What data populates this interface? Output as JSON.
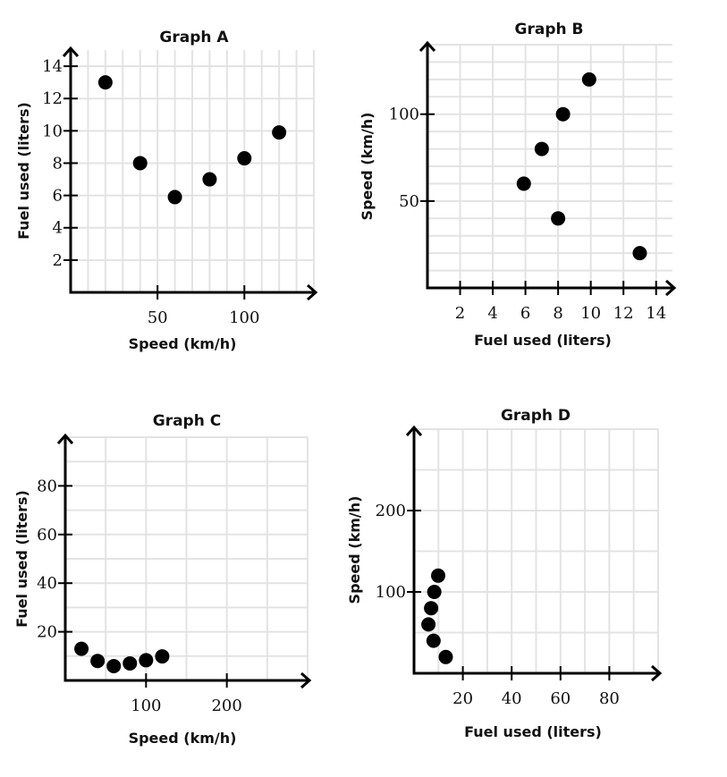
{
  "chart_data": [
    {
      "id": "A",
      "type": "scatter",
      "title": "Graph A",
      "xlabel": "Speed (km/h)",
      "ylabel": "Fuel used (liters)",
      "xlim": [
        0,
        140
      ],
      "ylim": [
        0,
        15
      ],
      "x_grid_step": 10,
      "y_grid_step": 2,
      "x_ticks": [
        50,
        100
      ],
      "y_ticks": [
        2,
        4,
        6,
        8,
        10,
        12,
        14
      ],
      "grid": true,
      "points": [
        {
          "x": 20,
          "y": 13
        },
        {
          "x": 40,
          "y": 8
        },
        {
          "x": 60,
          "y": 5.9
        },
        {
          "x": 80,
          "y": 7
        },
        {
          "x": 100,
          "y": 8.3
        },
        {
          "x": 120,
          "y": 9.9
        }
      ]
    },
    {
      "id": "B",
      "type": "scatter",
      "title": "Graph B",
      "xlabel": "Fuel used (liters)",
      "ylabel": "Speed (km/h)",
      "xlim": [
        0,
        15
      ],
      "ylim": [
        0,
        140
      ],
      "x_grid_step": 2,
      "y_grid_step": 10,
      "x_ticks": [
        2,
        4,
        6,
        8,
        10,
        12,
        14
      ],
      "y_ticks": [
        50,
        100
      ],
      "grid": true,
      "points": [
        {
          "x": 13,
          "y": 20
        },
        {
          "x": 8,
          "y": 40
        },
        {
          "x": 5.9,
          "y": 60
        },
        {
          "x": 7,
          "y": 80
        },
        {
          "x": 8.3,
          "y": 100
        },
        {
          "x": 9.9,
          "y": 120
        }
      ]
    },
    {
      "id": "C",
      "type": "scatter",
      "title": "Graph C",
      "xlabel": "Speed (km/h)",
      "ylabel": "Fuel used (liters)",
      "xlim": [
        0,
        300
      ],
      "ylim": [
        0,
        100
      ],
      "x_grid_step": 50,
      "y_grid_step": 10,
      "x_ticks": [
        100,
        200
      ],
      "y_ticks": [
        20,
        40,
        60,
        80
      ],
      "grid": true,
      "points": [
        {
          "x": 20,
          "y": 13
        },
        {
          "x": 40,
          "y": 8
        },
        {
          "x": 60,
          "y": 5.9
        },
        {
          "x": 80,
          "y": 7
        },
        {
          "x": 100,
          "y": 8.3
        },
        {
          "x": 120,
          "y": 9.9
        }
      ]
    },
    {
      "id": "D",
      "type": "scatter",
      "title": "Graph D",
      "xlabel": "Fuel used (liters)",
      "ylabel": "Speed (km/h)",
      "xlim": [
        0,
        100
      ],
      "ylim": [
        0,
        300
      ],
      "x_grid_step": 10,
      "y_grid_step": 50,
      "x_ticks": [
        20,
        40,
        60,
        80
      ],
      "y_ticks": [
        100,
        200
      ],
      "grid": true,
      "points": [
        {
          "x": 13,
          "y": 20
        },
        {
          "x": 8,
          "y": 40
        },
        {
          "x": 5.9,
          "y": 60
        },
        {
          "x": 7,
          "y": 80
        },
        {
          "x": 8.3,
          "y": 100
        },
        {
          "x": 9.9,
          "y": 120
        }
      ]
    }
  ]
}
